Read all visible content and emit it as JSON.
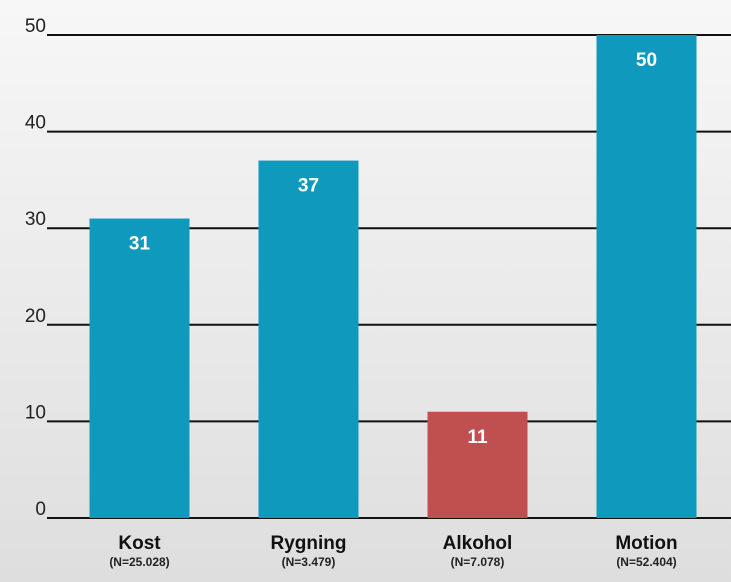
{
  "chart_data": {
    "type": "bar",
    "categories": [
      "Kost",
      "Rygning",
      "Alkohol",
      "Motion"
    ],
    "category_notes": [
      "(N=25.028)",
      "(N=3.479)",
      "(N=7.078)",
      "(N=52.404)"
    ],
    "values": [
      31,
      37,
      11,
      50
    ],
    "colors": [
      "#0f9abd",
      "#0f9abd",
      "#c0504f",
      "#0f9abd"
    ],
    "ylim": [
      0,
      50
    ],
    "yticks": [
      0,
      10,
      20,
      30,
      40,
      50
    ],
    "grid": true
  }
}
